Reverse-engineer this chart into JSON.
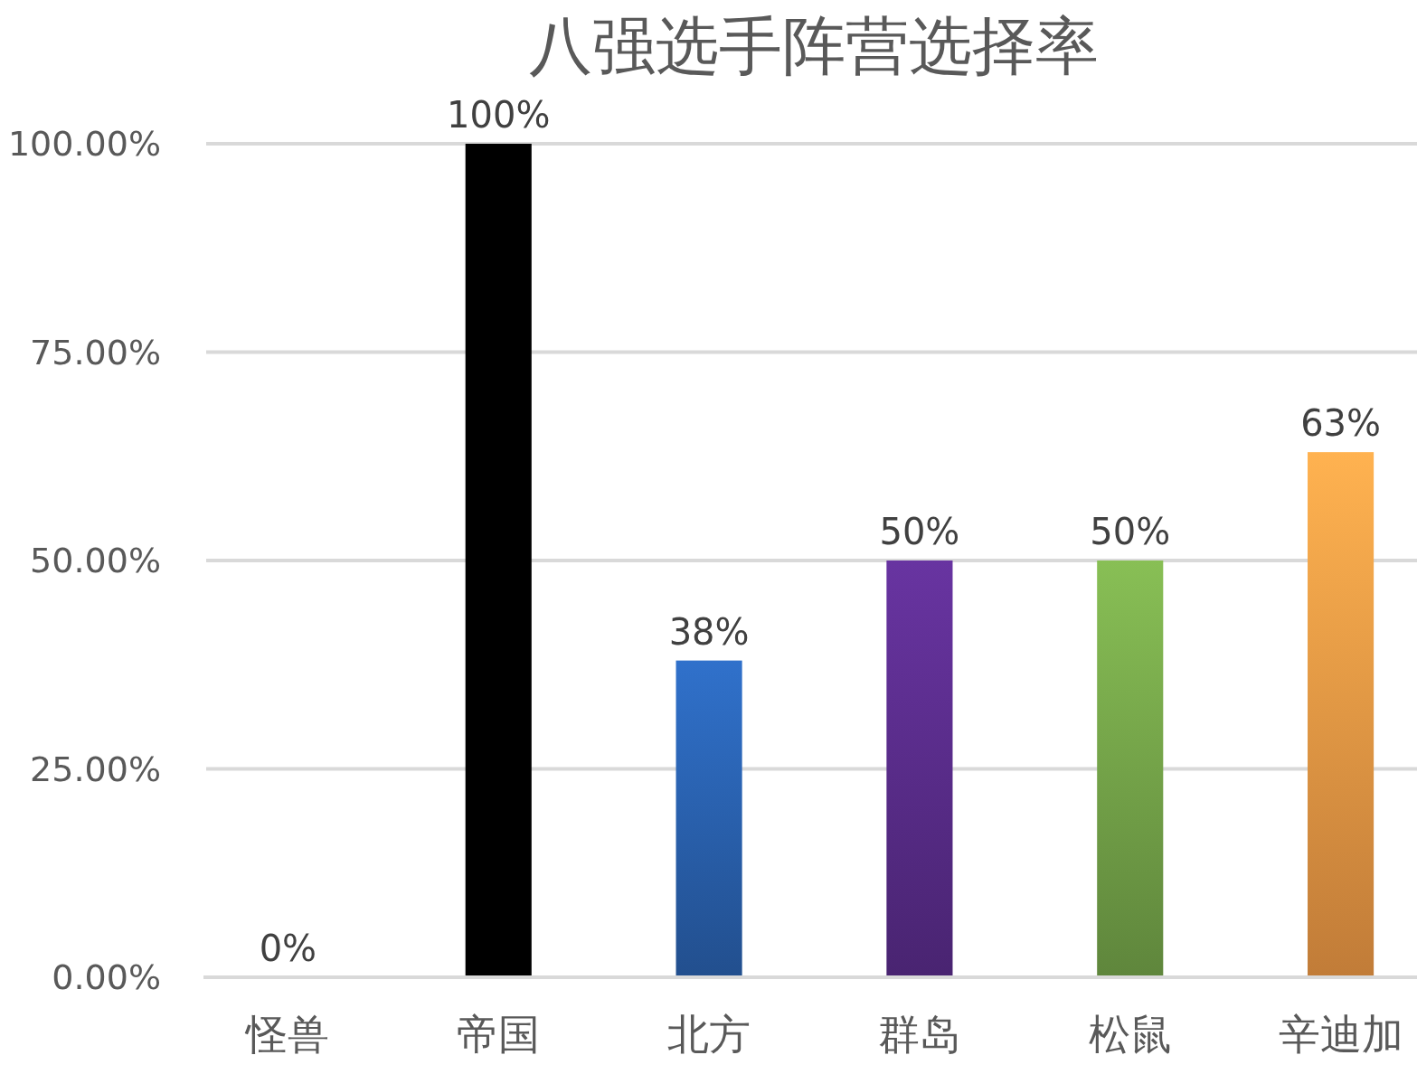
{
  "chart_data": {
    "type": "bar",
    "title": "八强选手阵营选择率",
    "categories": [
      "怪兽",
      "帝国",
      "北方",
      "群岛",
      "松鼠",
      "辛迪加"
    ],
    "values": [
      0,
      100,
      38,
      50,
      50,
      63
    ],
    "value_labels": [
      "0%",
      "100%",
      "38%",
      "50%",
      "50%",
      "63%"
    ],
    "colors": [
      "#4472c4",
      "#000000",
      "#2a62b0",
      "#5a2d8c",
      "#76a64a",
      "#ef9a45"
    ],
    "ylim": [
      0,
      100
    ],
    "yticks": [
      {
        "value": 0,
        "label": "0.00%"
      },
      {
        "value": 25,
        "label": "25.00%"
      },
      {
        "value": 50,
        "label": "50.00%"
      },
      {
        "value": 75,
        "label": "75.00%"
      },
      {
        "value": 100,
        "label": "100.00%"
      }
    ],
    "grid": "y"
  }
}
